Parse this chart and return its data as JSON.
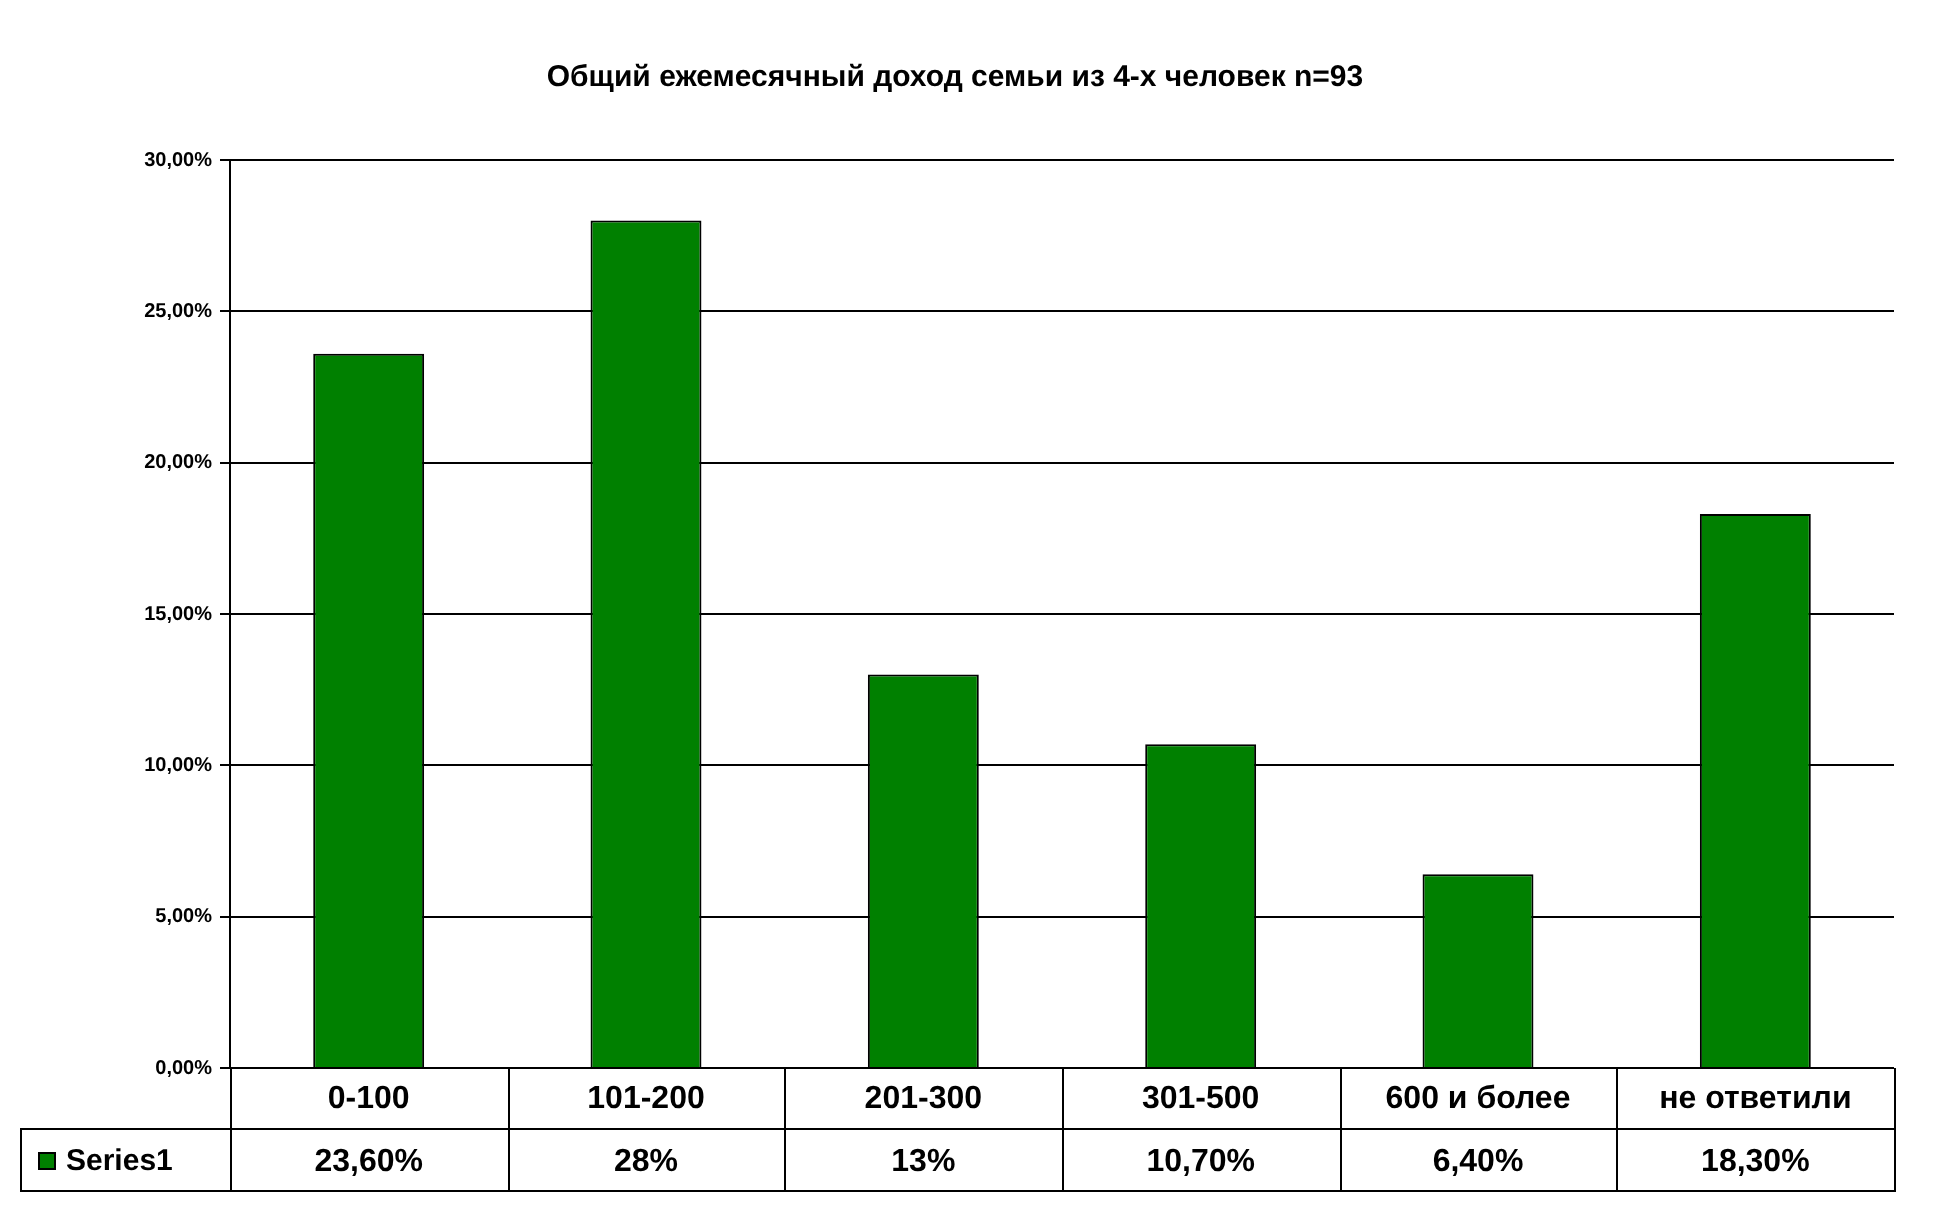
{
  "chart_data": {
    "type": "bar",
    "title": "Общий ежемесячный доход семьи из 4-х человек n=93",
    "categories": [
      "0-100",
      "101-200",
      "201-300",
      "301-500",
      "600 и более",
      "не ответили"
    ],
    "series": [
      {
        "name": "Series1",
        "color": "#008000",
        "values": [
          23.6,
          28,
          13,
          10.7,
          6.4,
          18.3
        ],
        "value_labels": [
          "23,60%",
          "28%",
          "13%",
          "10,70%",
          "6,40%",
          "18,30%"
        ]
      }
    ],
    "ylim": [
      0,
      30
    ],
    "yticks": [
      {
        "value": 0,
        "label": "0,00%"
      },
      {
        "value": 5,
        "label": "5,00%"
      },
      {
        "value": 10,
        "label": "10,00%"
      },
      {
        "value": 15,
        "label": "15,00%"
      },
      {
        "value": 20,
        "label": "20,00%"
      },
      {
        "value": 25,
        "label": "25,00%"
      },
      {
        "value": 30,
        "label": "30,00%"
      }
    ],
    "grid": "y",
    "legend": "bottom"
  }
}
